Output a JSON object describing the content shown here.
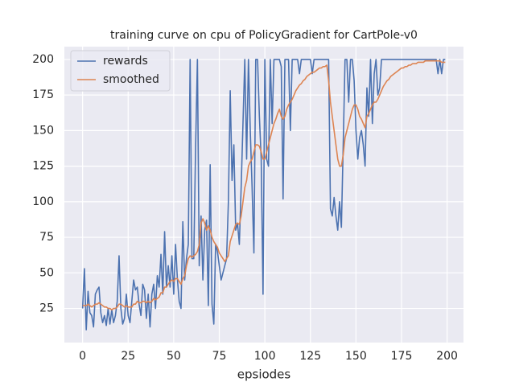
{
  "chart_data": {
    "type": "line",
    "title": "training curve on cpu of PolicyGradient for CartPole-v0",
    "xlabel": "epsiodes",
    "x": [
      0,
      1,
      2,
      3,
      4,
      5,
      6,
      7,
      8,
      9,
      10,
      11,
      12,
      13,
      14,
      15,
      16,
      17,
      18,
      19,
      20,
      21,
      22,
      23,
      24,
      25,
      26,
      27,
      28,
      29,
      30,
      31,
      32,
      33,
      34,
      35,
      36,
      37,
      38,
      39,
      40,
      41,
      42,
      43,
      44,
      45,
      46,
      47,
      48,
      49,
      50,
      51,
      52,
      53,
      54,
      55,
      56,
      57,
      58,
      59,
      60,
      61,
      62,
      63,
      64,
      65,
      66,
      67,
      68,
      69,
      70,
      71,
      72,
      73,
      74,
      75,
      76,
      77,
      78,
      79,
      80,
      81,
      82,
      83,
      84,
      85,
      86,
      87,
      88,
      89,
      90,
      91,
      92,
      93,
      94,
      95,
      96,
      97,
      98,
      99,
      100,
      101,
      102,
      103,
      104,
      105,
      106,
      107,
      108,
      109,
      110,
      111,
      112,
      113,
      114,
      115,
      116,
      117,
      118,
      119,
      120,
      121,
      122,
      123,
      124,
      125,
      126,
      127,
      128,
      129,
      130,
      131,
      132,
      133,
      134,
      135,
      136,
      137,
      138,
      139,
      140,
      141,
      142,
      143,
      144,
      145,
      146,
      147,
      148,
      149,
      150,
      151,
      152,
      153,
      154,
      155,
      156,
      157,
      158,
      159,
      160,
      161,
      162,
      163,
      164,
      165,
      166,
      167,
      168,
      169,
      170,
      171,
      172,
      173,
      174,
      175,
      176,
      177,
      178,
      179,
      180,
      181,
      182,
      183,
      184,
      185,
      186,
      187,
      188,
      189,
      190,
      191,
      192,
      193,
      194,
      195,
      196,
      197,
      198,
      199
    ],
    "series": [
      {
        "name": "rewards",
        "color": "#4c72b0",
        "values": [
          25,
          53,
          10,
          37,
          22,
          20,
          12,
          35,
          38,
          40,
          22,
          15,
          20,
          13,
          25,
          14,
          24,
          15,
          20,
          30,
          62,
          25,
          14,
          18,
          35,
          20,
          15,
          30,
          45,
          38,
          40,
          28,
          20,
          42,
          38,
          18,
          35,
          12,
          35,
          42,
          25,
          48,
          40,
          63,
          35,
          79,
          40,
          55,
          40,
          62,
          35,
          70,
          46,
          30,
          25,
          86,
          45,
          60,
          70,
          200,
          60,
          60,
          138,
          200,
          55,
          90,
          45,
          80,
          87,
          27,
          126,
          28,
          14,
          70,
          65,
          55,
          45,
          50,
          55,
          60,
          100,
          178,
          115,
          140,
          80,
          85,
          70,
          110,
          155,
          200,
          130,
          200,
          150,
          110,
          64,
          200,
          200,
          160,
          130,
          35,
          200,
          130,
          125,
          200,
          155,
          200,
          200,
          200,
          200,
          195,
          102,
          200,
          200,
          200,
          150,
          200,
          200,
          200,
          200,
          190,
          200,
          200,
          200,
          200,
          200,
          200,
          190,
          200,
          200,
          200,
          200,
          200,
          200,
          200,
          200,
          200,
          95,
          90,
          103,
          90,
          80,
          100,
          82,
          140,
          200,
          200,
          170,
          200,
          200,
          185,
          150,
          130,
          145,
          150,
          140,
          125,
          180,
          160,
          200,
          155,
          190,
          200,
          175,
          180,
          200,
          200,
          200,
          200,
          200,
          200,
          200,
          200,
          200,
          200,
          200,
          200,
          200,
          200,
          200,
          200,
          200,
          200,
          200,
          200,
          200,
          200,
          200,
          200,
          200,
          200,
          200,
          200,
          200,
          200,
          200,
          190,
          200,
          190,
          200,
          200
        ]
      },
      {
        "name": "smoothed",
        "color": "#dd8452",
        "values": [
          27,
          27,
          27,
          28,
          27,
          26,
          27,
          28,
          28,
          29,
          28,
          27,
          26,
          26,
          25,
          25,
          24,
          25,
          25,
          26,
          28,
          28,
          27,
          26,
          27,
          26,
          26,
          26,
          28,
          28,
          30,
          29,
          29,
          30,
          30,
          29,
          30,
          29,
          30,
          32,
          31,
          32,
          33,
          36,
          36,
          40,
          40,
          42,
          44,
          45,
          44,
          46,
          46,
          44,
          42,
          46,
          48,
          55,
          60,
          62,
          61,
          62,
          63,
          65,
          70,
          85,
          88,
          85,
          80,
          83,
          80,
          75,
          72,
          70,
          68,
          64,
          62,
          60,
          58,
          60,
          62,
          72,
          76,
          80,
          84,
          85,
          84,
          90,
          100,
          110,
          115,
          125,
          128,
          130,
          135,
          140,
          140,
          139,
          135,
          130,
          130,
          135,
          140,
          145,
          150,
          155,
          158,
          162,
          165,
          160,
          158,
          160,
          165,
          168,
          170,
          172,
          175,
          178,
          180,
          182,
          183,
          185,
          186,
          188,
          189,
          190,
          191,
          191,
          192,
          193,
          194,
          194,
          195,
          195,
          196,
          185,
          170,
          160,
          150,
          140,
          130,
          125,
          125,
          133,
          145,
          150,
          155,
          160,
          165,
          168,
          168,
          165,
          160,
          158,
          155,
          152,
          160,
          162,
          165,
          168,
          170,
          170,
          172,
          175,
          178,
          181,
          183,
          185,
          186,
          188,
          189,
          190,
          191,
          192,
          193,
          194,
          194,
          195,
          195,
          196,
          196,
          197,
          197,
          197,
          198,
          198,
          198,
          198,
          199,
          199,
          199,
          199,
          199,
          199,
          199,
          199,
          199,
          198,
          198,
          198
        ]
      }
    ],
    "xlim": [
      -10,
      209
    ],
    "ylim": [
      1,
      209
    ],
    "xticks": [
      0,
      25,
      50,
      75,
      100,
      125,
      150,
      175,
      200
    ],
    "yticks": [
      25,
      50,
      75,
      100,
      125,
      150,
      175,
      200
    ],
    "grid": true,
    "legend": "upper left"
  }
}
